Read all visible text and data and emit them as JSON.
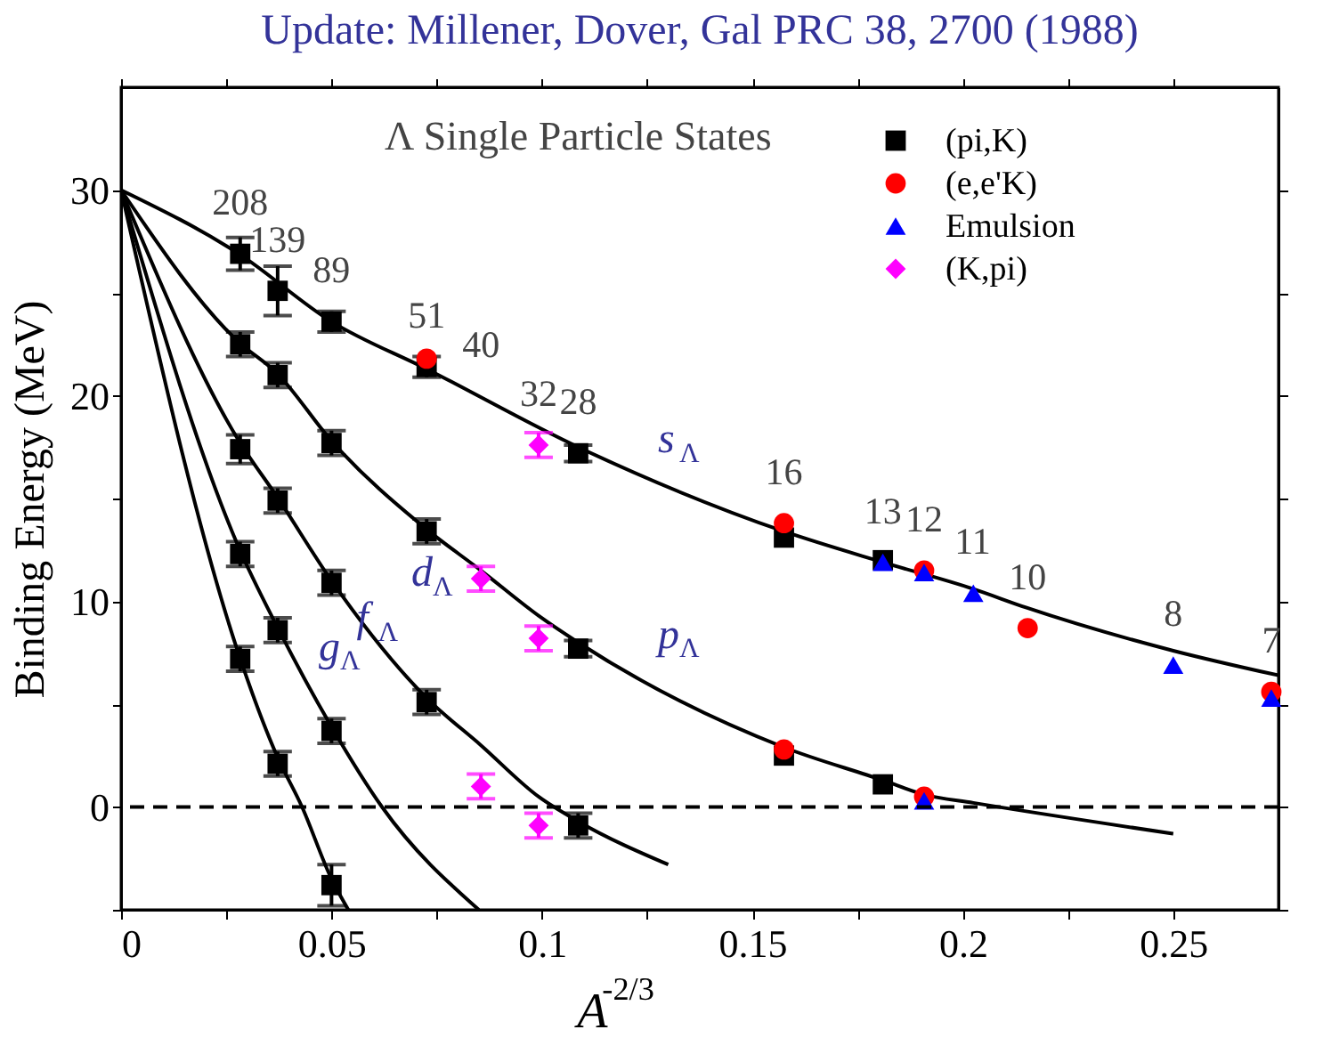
{
  "chart_data": {
    "type": "scatter",
    "title": "Update:     Millener, Dover, Gal PRC 38, 2700 (1988)",
    "xlabel": "A$^{-2/3}$",
    "ylabel": "Binding Energy (MeV)",
    "xlim": [
      0,
      0.275
    ],
    "ylim": [
      -5,
      35
    ],
    "xticks": [
      0,
      {
        "value": 0.025,
        "label": null
      },
      0.05,
      {
        "value": 0.075,
        "label": null
      },
      0.1,
      {
        "value": 0.125,
        "label": null
      },
      0.15,
      {
        "value": 0.175,
        "label": null
      },
      0.2,
      {
        "value": 0.225,
        "label": null
      },
      0.25
    ],
    "yticks": [
      {
        "value": -5,
        "label": null
      },
      0,
      {
        "value": 5,
        "label": null
      },
      10,
      {
        "value": 15,
        "label": null
      },
      20,
      {
        "value": 25,
        "label": null
      },
      30
    ],
    "grid": false,
    "legend": "top right",
    "ref_lines": [
      {
        "axis": "y",
        "value": 0,
        "label": null,
        "color": "#000000",
        "line_style": "dashed"
      }
    ],
    "series": [
      {
        "name": "(pi,K)",
        "color": "#000000",
        "marker": "square",
        "x": [
          0.0283,
          0.0372,
          0.05,
          0.0726,
          0.1086,
          0.1575,
          0.181,
          0.0283,
          0.0372,
          0.05,
          0.0726,
          0.1086,
          0.1575,
          0.181,
          0.0283,
          0.0372,
          0.05,
          0.0726,
          0.1086,
          0.0283,
          0.0372,
          0.05,
          0.0283,
          0.0372,
          0.05
        ],
        "values": [
          26.9,
          25.1,
          23.6,
          21.4,
          17.2,
          13.1,
          12.0,
          22.5,
          21.0,
          17.7,
          13.4,
          7.7,
          2.5,
          1.1,
          17.4,
          14.9,
          10.9,
          5.1,
          -0.9,
          12.3,
          8.6,
          3.7,
          7.2,
          2.1,
          -3.8
        ],
        "errors": [
          0.8,
          1.2,
          0.5,
          0.5,
          0.4,
          null,
          null,
          0.6,
          0.6,
          0.6,
          0.6,
          0.4,
          null,
          null,
          0.7,
          0.6,
          0.6,
          0.6,
          0.6,
          0.6,
          0.6,
          0.6,
          0.6,
          0.6,
          1.0
        ]
      },
      {
        "name": "(e,e'K)",
        "color": "#ff0000",
        "marker": "circle",
        "x": [
          0.0726,
          0.1575,
          0.1908,
          0.2154,
          0.2733,
          0.1575,
          0.1908
        ],
        "values": [
          21.8,
          13.8,
          11.5,
          8.7,
          5.6,
          2.8,
          0.5
        ]
      },
      {
        "name": "Emulsion",
        "color": "#0000ff",
        "marker": "triangle",
        "x": [
          0.181,
          0.1908,
          0.2025,
          0.25,
          0.2733,
          0.1908
        ],
        "values": [
          11.9,
          11.4,
          10.4,
          6.9,
          5.3,
          0.3
        ]
      },
      {
        "name": "(K,pi)",
        "color": "#ff00ff",
        "marker": "diamond",
        "x": [
          0.0992,
          0.0855,
          0.0992,
          0.0855,
          0.0992
        ],
        "values": [
          17.6,
          11.1,
          8.2,
          1.0,
          -0.9
        ],
        "errors": [
          0.6,
          0.6,
          0.6,
          0.6,
          0.6
        ]
      },
      {
        "type": "line",
        "color": "#000000",
        "x": [
          0,
          0.028,
          0.05,
          0.0726,
          0.1086,
          0.1575,
          0.181,
          0.2025,
          0.215,
          0.25,
          0.275
        ],
        "values": [
          30,
          26.9,
          23.6,
          21.3,
          17.5,
          13.4,
          11.9,
          10.6,
          9.7,
          7.6,
          6.4
        ]
      },
      {
        "type": "line",
        "color": "#000000",
        "x": [
          0,
          0.028,
          0.037,
          0.05,
          0.0726,
          0.0855,
          0.0992,
          0.1086,
          0.1575,
          0.181,
          0.1908,
          0.2025,
          0.25
        ],
        "values": [
          30,
          22.6,
          21.1,
          17.8,
          13.5,
          11.5,
          9.3,
          8.0,
          2.9,
          1.3,
          0.6,
          0.2,
          -1.3
        ]
      },
      {
        "type": "line",
        "color": "#000000",
        "x": [
          0,
          0.028,
          0.037,
          0.05,
          0.0726,
          0.0855,
          0.0992,
          0.1086,
          0.13
        ],
        "values": [
          30,
          17.8,
          15.1,
          11.0,
          5.3,
          3.0,
          0.5,
          -0.7,
          -2.8
        ]
      },
      {
        "type": "line",
        "color": "#000000",
        "x": [
          0,
          0.028,
          0.037,
          0.05,
          0.062,
          0.085
        ],
        "values": [
          30,
          12.6,
          8.8,
          3.9,
          0,
          -5
        ]
      },
      {
        "type": "line",
        "color": "#000000",
        "x": [
          0,
          0.028,
          0.037,
          0.043,
          0.05,
          0.054
        ],
        "values": [
          30,
          7.4,
          2.5,
          0,
          -3.5,
          -5
        ]
      }
    ],
    "annotations": [
      "Λ Single Particle States",
      {
        "text": "208",
        "x": 0.0283,
        "y": 26.9
      },
      {
        "text": "139",
        "x": 0.0372,
        "y": 25.1
      },
      {
        "text": "89",
        "x": 0.05,
        "y": 23.6
      },
      {
        "text": "51",
        "x": 0.0726,
        "y": 21.4
      },
      {
        "text": "40",
        "x": 0.0855,
        "y": 20.0
      },
      {
        "text": "32",
        "x": 0.0992,
        "y": 17.6
      },
      {
        "text": "28",
        "x": 0.1086,
        "y": 17.2
      },
      {
        "text": "16",
        "x": 0.1575,
        "y": 13.8
      },
      {
        "text": "13",
        "x": 0.181,
        "y": 11.9
      },
      {
        "text": "12",
        "x": 0.1908,
        "y": 11.5
      },
      {
        "text": "11",
        "x": 0.2025,
        "y": 10.4
      },
      {
        "text": "10",
        "x": 0.2154,
        "y": 8.7
      },
      {
        "text": "8",
        "x": 0.25,
        "y": 6.9
      },
      {
        "text": "7",
        "x": 0.2733,
        "y": 5.6
      },
      {
        "text": "s$_{Λ}$",
        "x": 0.1086,
        "y": 17.5
      },
      {
        "text": "p$_{Λ}$",
        "x": 0.1086,
        "y": 8.0
      },
      {
        "text": "d$_{Λ}$",
        "x": 0.05,
        "y": 11.0
      },
      {
        "text": "f$_{Λ}$",
        "x": 0.037,
        "y": 8.8
      },
      {
        "text": "g$_{Λ}$",
        "x": 0.028,
        "y": 7.4
      }
    ]
  }
}
